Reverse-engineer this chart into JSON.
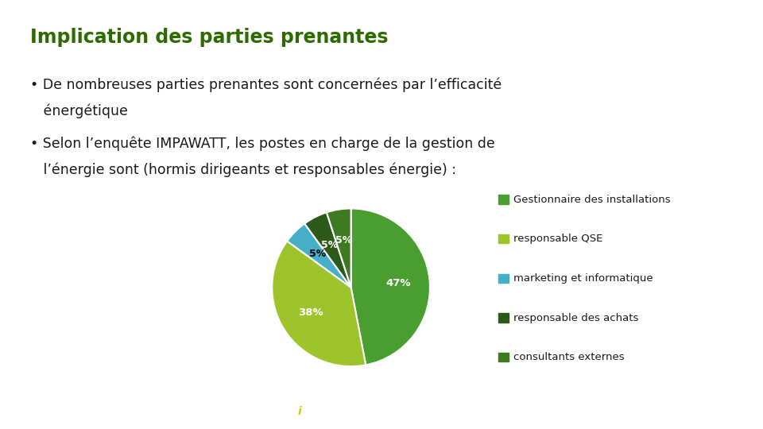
{
  "title": "Implication des parties prenantes",
  "title_color": "#2d6a00",
  "title_fontsize": 17,
  "bullet1_line1": "• De nombreuses parties prenantes sont concernées par l’efficacité",
  "bullet1_line2": "   énergétique",
  "bullet2_line1": "• Selon l’enquête IMPAWATT, les postes en charge de la gestion de",
  "bullet2_line2": "   l’énergie sont (hormis dirigeants et responsables énergie) :",
  "text_color": "#1a1a1a",
  "text_fontsize": 12.5,
  "pie_values": [
    47,
    38,
    5,
    5,
    5
  ],
  "pie_colors": [
    "#4a9e2f",
    "#9dc42b",
    "#44b0c8",
    "#2d5a1b",
    "#3d7a20"
  ],
  "legend_labels": [
    "Gestionnaire des installations",
    "responsable QSE",
    "marketing et informatique",
    "responsable des achats",
    "consultants externes"
  ],
  "legend_colors": [
    "#4a9e2f",
    "#9dc42b",
    "#44b0c8",
    "#2d5a1b",
    "#3d7a20"
  ],
  "legend_fontsize": 9.5,
  "footer_color": "#2d6a00",
  "background_color": "#ffffff",
  "pie_label_colors": [
    "white",
    "white",
    "black",
    "white",
    "white"
  ],
  "pie_pct_labels": [
    "47%",
    "38%",
    "5%",
    "5%",
    "5%"
  ]
}
